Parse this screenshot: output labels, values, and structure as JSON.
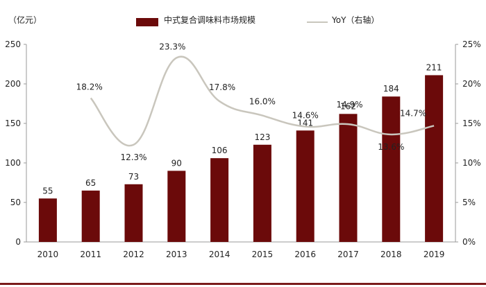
{
  "chart_data": {
    "type": "bar",
    "categories": [
      "2010",
      "2011",
      "2012",
      "2013",
      "2014",
      "2015",
      "2016",
      "2017",
      "2018",
      "2019"
    ],
    "series": [
      {
        "name": "中式复合调味料市场规模",
        "type": "bar",
        "axis": "left",
        "values": [
          55,
          65,
          73,
          90,
          106,
          123,
          141,
          162,
          184,
          211
        ],
        "color": "#6b0a0a"
      },
      {
        "name": "YoY（右轴）",
        "type": "line",
        "axis": "right",
        "values": [
          null,
          18.2,
          12.3,
          23.3,
          17.8,
          16.0,
          14.6,
          14.9,
          13.6,
          14.7
        ],
        "labels": [
          "",
          "18.2%",
          "12.3%",
          "23.3%",
          "17.8%",
          "16.0%",
          "14.6%",
          "14.9%",
          "13.6%",
          "14.7%"
        ],
        "color": "#c9c6bd"
      }
    ],
    "y_left": {
      "unit_label": "（亿元）",
      "ylim": [
        0,
        250
      ],
      "ticks": [
        "0",
        "50",
        "100",
        "150",
        "200",
        "250"
      ]
    },
    "y_right": {
      "ylim": [
        0,
        25
      ],
      "ticks": [
        "0%",
        "5%",
        "10%",
        "15%",
        "20%",
        "25%"
      ]
    },
    "legend_position": "top",
    "grid": false
  },
  "legend": {
    "bar_label": "中式复合调味料市场规模",
    "line_label": "YoY（右轴）"
  },
  "colors": {
    "bar": "#6b0a0a",
    "line": "#c9c6bd",
    "axis": "#999999",
    "bottom_rule": "#7a1a1a"
  }
}
